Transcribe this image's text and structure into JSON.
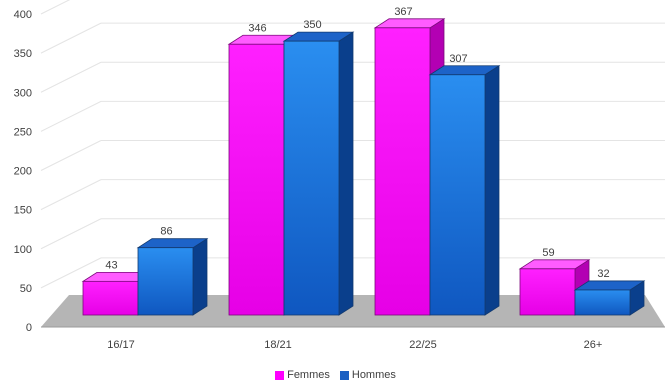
{
  "chart_data": {
    "type": "bar",
    "title": "",
    "xlabel": "",
    "ylabel": "",
    "categories": [
      "16/17",
      "18/21",
      "22/25",
      "26+"
    ],
    "ylim": [
      0,
      400
    ],
    "yticks": [
      "0",
      "50",
      "100",
      "150",
      "200",
      "250",
      "300",
      "350",
      "400"
    ],
    "grid": true,
    "legend_position": "bottom",
    "series": [
      {
        "name": "Femmes",
        "values": [
          43,
          346,
          367,
          59
        ],
        "color": "#ff00ff"
      },
      {
        "name": "Hommes",
        "values": [
          86,
          350,
          307,
          32
        ],
        "color": "#1a5fc2"
      }
    ]
  }
}
